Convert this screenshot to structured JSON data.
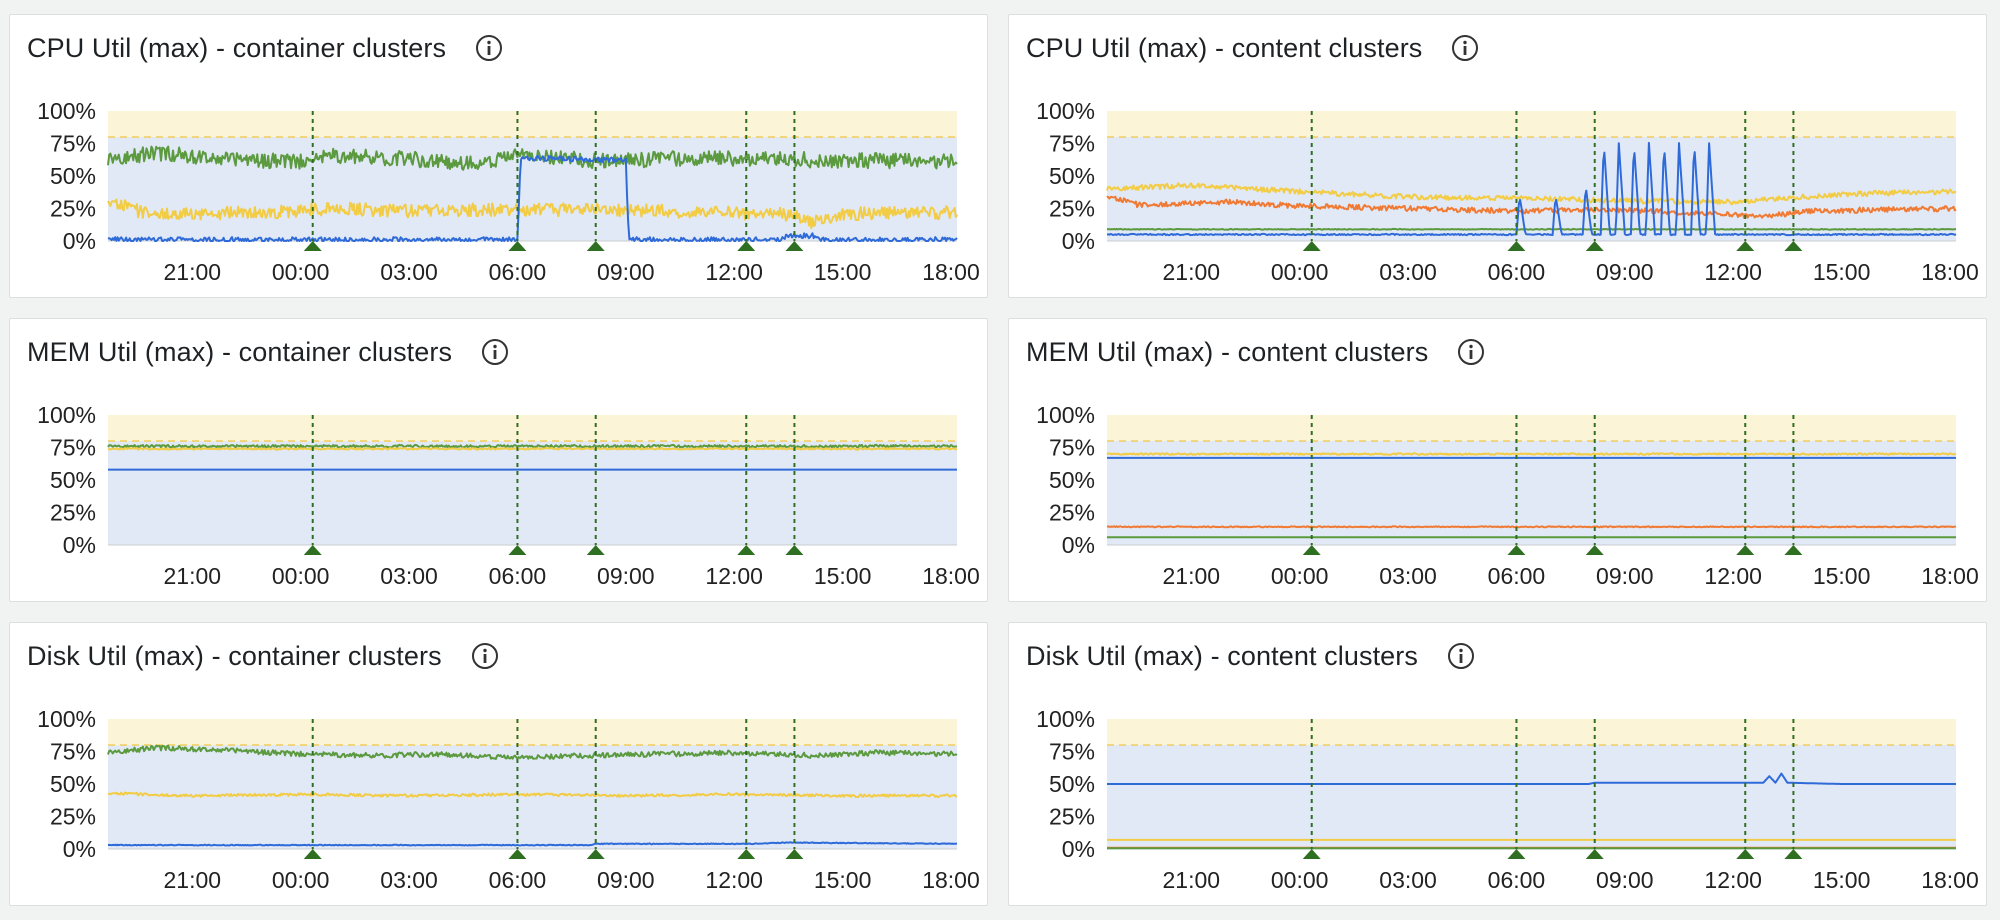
{
  "colors": {
    "band_warn": "#fbf4d6",
    "band_ok": "#e2e9f6",
    "threshold_line": "#f2cd5b",
    "marker": "#2f6f22",
    "blue": "#2f6bd8",
    "green": "#5b9a3f",
    "yellow": "#f2cc44",
    "orange": "#f07a33"
  },
  "icons": {
    "info": "info-circle-icon",
    "annotation": "triangle-marker-icon"
  },
  "chart_data": [
    {
      "id": "cpu-container",
      "title": "CPU Util (max) - container clusters",
      "type": "line",
      "y_ticks": [
        "100%",
        "75%",
        "50%",
        "25%",
        "0%"
      ],
      "x_ticks": [
        "21:00",
        "00:00",
        "03:00",
        "06:00",
        "09:00",
        "12:00",
        "15:00",
        "18:00"
      ],
      "ylim": [
        0,
        100
      ],
      "threshold": 80,
      "xlim": [
        "18:40",
        "18:10"
      ],
      "annotations": [
        "00:20",
        "06:00",
        "08:10",
        "12:20",
        "13:40"
      ],
      "series": [
        {
          "color": "green",
          "points": [
            [
              "18:40",
              62
            ],
            [
              "20:00",
              68
            ],
            [
              "22:00",
              63
            ],
            [
              "00:00",
              61
            ],
            [
              "01:00",
              66
            ],
            [
              "03:00",
              63
            ],
            [
              "05:00",
              60
            ],
            [
              "06:00",
              66
            ],
            [
              "08:00",
              62
            ],
            [
              "09:00",
              62
            ],
            [
              "11:00",
              64
            ],
            [
              "13:00",
              63
            ],
            [
              "15:00",
              62
            ],
            [
              "18:10",
              61
            ]
          ],
          "noise": 6
        },
        {
          "color": "yellow",
          "points": [
            [
              "18:40",
              32
            ],
            [
              "19:30",
              23
            ],
            [
              "21:00",
              21
            ],
            [
              "23:00",
              22
            ],
            [
              "01:00",
              25
            ],
            [
              "03:00",
              23
            ],
            [
              "05:00",
              24
            ],
            [
              "06:00",
              24
            ],
            [
              "09:00",
              24
            ],
            [
              "11:00",
              22
            ],
            [
              "13:00",
              21
            ],
            [
              "13:40",
              20
            ],
            [
              "14:10",
              14
            ],
            [
              "15:00",
              21
            ],
            [
              "18:10",
              22
            ]
          ],
          "noise": 5
        },
        {
          "color": "blue",
          "points": [
            [
              "18:40",
              1
            ],
            [
              "06:00",
              1
            ],
            [
              "06:05",
              64
            ],
            [
              "09:00",
              62
            ],
            [
              "09:05",
              1
            ],
            [
              "13:20",
              1
            ],
            [
              "13:25",
              4
            ],
            [
              "14:20",
              4
            ],
            [
              "14:25",
              1
            ],
            [
              "18:10",
              1
            ]
          ],
          "noise": 2
        }
      ]
    },
    {
      "id": "cpu-content",
      "title": "CPU Util (max) - content clusters",
      "type": "line",
      "y_ticks": [
        "100%",
        "75%",
        "50%",
        "25%",
        "0%"
      ],
      "x_ticks": [
        "21:00",
        "00:00",
        "03:00",
        "06:00",
        "09:00",
        "12:00",
        "15:00",
        "18:00"
      ],
      "ylim": [
        0,
        100
      ],
      "threshold": 80,
      "xlim": [
        "18:40",
        "18:10"
      ],
      "annotations": [
        "00:20",
        "06:00",
        "08:10",
        "12:20",
        "13:40"
      ],
      "series": [
        {
          "color": "yellow",
          "points": [
            [
              "18:40",
              40
            ],
            [
              "21:00",
              43
            ],
            [
              "00:00",
              38
            ],
            [
              "03:00",
              34
            ],
            [
              "06:00",
              33
            ],
            [
              "09:00",
              31
            ],
            [
              "12:00",
              30
            ],
            [
              "13:30",
              33
            ],
            [
              "15:00",
              36
            ],
            [
              "18:10",
              38
            ]
          ],
          "noise": 2
        },
        {
          "color": "orange",
          "points": [
            [
              "18:40",
              35
            ],
            [
              "19:30",
              28
            ],
            [
              "22:00",
              30
            ],
            [
              "00:00",
              27
            ],
            [
              "03:00",
              25
            ],
            [
              "06:00",
              23
            ],
            [
              "09:00",
              24
            ],
            [
              "12:00",
              20
            ],
            [
              "13:00",
              19
            ],
            [
              "14:00",
              23
            ],
            [
              "18:10",
              25
            ]
          ],
          "noise": 2
        },
        {
          "color": "green",
          "points": [
            [
              "18:40",
              9
            ],
            [
              "18:10",
              9
            ]
          ],
          "noise": 0.3
        },
        {
          "color": "blue",
          "points": [
            [
              "18:40",
              5
            ],
            [
              "06:00",
              5
            ],
            [
              "06:05",
              35
            ],
            [
              "06:15",
              5
            ],
            [
              "07:00",
              5
            ],
            [
              "07:05",
              35
            ],
            [
              "07:15",
              5
            ],
            [
              "07:50",
              5
            ],
            [
              "07:55",
              42
            ],
            [
              "08:05",
              5
            ],
            [
              "08:20",
              5
            ],
            [
              "08:25",
              75
            ],
            [
              "08:35",
              5
            ],
            [
              "08:45",
              5
            ],
            [
              "08:50",
              75
            ],
            [
              "09:00",
              5
            ],
            [
              "09:10",
              5
            ],
            [
              "09:15",
              75
            ],
            [
              "09:25",
              5
            ],
            [
              "09:35",
              5
            ],
            [
              "09:40",
              75
            ],
            [
              "09:50",
              5
            ],
            [
              "10:00",
              5
            ],
            [
              "10:05",
              75
            ],
            [
              "10:15",
              5
            ],
            [
              "10:25",
              5
            ],
            [
              "10:30",
              75
            ],
            [
              "10:40",
              5
            ],
            [
              "10:50",
              5
            ],
            [
              "10:55",
              75
            ],
            [
              "11:05",
              5
            ],
            [
              "11:15",
              5
            ],
            [
              "11:20",
              75
            ],
            [
              "11:30",
              5
            ],
            [
              "18:10",
              5
            ]
          ],
          "noise": 0.5
        }
      ]
    },
    {
      "id": "mem-container",
      "title": "MEM Util (max) - container clusters",
      "type": "line",
      "y_ticks": [
        "100%",
        "75%",
        "50%",
        "25%",
        "0%"
      ],
      "x_ticks": [
        "21:00",
        "00:00",
        "03:00",
        "06:00",
        "09:00",
        "12:00",
        "15:00",
        "18:00"
      ],
      "ylim": [
        0,
        100
      ],
      "threshold": 80,
      "xlim": [
        "18:40",
        "18:10"
      ],
      "annotations": [
        "00:20",
        "06:00",
        "08:10",
        "12:20",
        "13:40"
      ],
      "series": [
        {
          "color": "green",
          "points": [
            [
              "18:40",
              76
            ],
            [
              "18:10",
              76
            ]
          ],
          "noise": 1
        },
        {
          "color": "yellow",
          "points": [
            [
              "18:40",
              74
            ],
            [
              "18:10",
              74
            ]
          ],
          "noise": 0.6
        },
        {
          "color": "blue",
          "points": [
            [
              "18:40",
              58
            ],
            [
              "18:10",
              58
            ]
          ],
          "noise": 0
        }
      ]
    },
    {
      "id": "mem-content",
      "title": "MEM Util (max) - content clusters",
      "type": "line",
      "y_ticks": [
        "100%",
        "75%",
        "50%",
        "25%",
        "0%"
      ],
      "x_ticks": [
        "21:00",
        "00:00",
        "03:00",
        "06:00",
        "09:00",
        "12:00",
        "15:00",
        "18:00"
      ],
      "ylim": [
        0,
        100
      ],
      "threshold": 80,
      "xlim": [
        "18:40",
        "18:10"
      ],
      "annotations": [
        "00:20",
        "06:00",
        "08:10",
        "12:20",
        "13:40"
      ],
      "series": [
        {
          "color": "yellow",
          "points": [
            [
              "18:40",
              70
            ],
            [
              "18:10",
              70
            ]
          ],
          "noise": 0.6
        },
        {
          "color": "blue",
          "points": [
            [
              "18:40",
              67
            ],
            [
              "18:10",
              67
            ]
          ],
          "noise": 0
        },
        {
          "color": "orange",
          "points": [
            [
              "18:40",
              14
            ],
            [
              "18:10",
              14
            ]
          ],
          "noise": 0.4
        },
        {
          "color": "green",
          "points": [
            [
              "18:40",
              6
            ],
            [
              "18:10",
              6
            ]
          ],
          "noise": 0
        }
      ]
    },
    {
      "id": "disk-container",
      "title": "Disk Util (max) - container clusters",
      "type": "line",
      "y_ticks": [
        "100%",
        "75%",
        "50%",
        "25%",
        "0%"
      ],
      "x_ticks": [
        "21:00",
        "00:00",
        "03:00",
        "06:00",
        "09:00",
        "12:00",
        "15:00",
        "18:00"
      ],
      "ylim": [
        0,
        100
      ],
      "threshold": 80,
      "xlim": [
        "18:40",
        "18:10"
      ],
      "annotations": [
        "00:20",
        "06:00",
        "08:10",
        "12:20",
        "13:40"
      ],
      "series": [
        {
          "color": "green",
          "points": [
            [
              "18:40",
              74
            ],
            [
              "20:00",
              78
            ],
            [
              "22:00",
              76
            ],
            [
              "00:00",
              73
            ],
            [
              "02:00",
              72
            ],
            [
              "04:00",
              73
            ],
            [
              "06:00",
              70
            ],
            [
              "08:00",
              72
            ],
            [
              "10:00",
              73
            ],
            [
              "12:00",
              74
            ],
            [
              "14:00",
              72
            ],
            [
              "16:00",
              74
            ],
            [
              "18:10",
              73
            ]
          ],
          "noise": 2
        },
        {
          "color": "yellow",
          "points": [
            [
              "18:40",
              43
            ],
            [
              "21:00",
              41
            ],
            [
              "00:00",
              42
            ],
            [
              "03:00",
              41
            ],
            [
              "06:00",
              42
            ],
            [
              "09:00",
              41
            ],
            [
              "12:00",
              42
            ],
            [
              "15:00",
              41
            ],
            [
              "18:10",
              41
            ]
          ],
          "noise": 1
        },
        {
          "color": "blue",
          "points": [
            [
              "18:40",
              3
            ],
            [
              "08:00",
              3
            ],
            [
              "08:10",
              4
            ],
            [
              "12:30",
              4
            ],
            [
              "13:30",
              5
            ],
            [
              "18:10",
              4
            ]
          ],
          "noise": 0.3
        }
      ]
    },
    {
      "id": "disk-content",
      "title": "Disk Util (max) - content clusters",
      "type": "line",
      "y_ticks": [
        "100%",
        "75%",
        "50%",
        "25%",
        "0%"
      ],
      "x_ticks": [
        "21:00",
        "00:00",
        "03:00",
        "06:00",
        "09:00",
        "12:00",
        "15:00",
        "18:00"
      ],
      "ylim": [
        0,
        100
      ],
      "threshold": 80,
      "xlim": [
        "18:40",
        "18:10"
      ],
      "annotations": [
        "00:20",
        "06:00",
        "08:10",
        "12:20",
        "13:40"
      ],
      "series": [
        {
          "color": "blue",
          "points": [
            [
              "18:40",
              50
            ],
            [
              "08:00",
              50
            ],
            [
              "08:10",
              51
            ],
            [
              "12:50",
              51
            ],
            [
              "13:00",
              56
            ],
            [
              "13:10",
              51
            ],
            [
              "13:20",
              58
            ],
            [
              "13:30",
              51
            ],
            [
              "15:00",
              50
            ],
            [
              "18:10",
              50
            ]
          ],
          "noise": 0
        },
        {
          "color": "yellow",
          "points": [
            [
              "18:40",
              7
            ],
            [
              "18:10",
              7
            ]
          ],
          "noise": 0
        },
        {
          "color": "orange",
          "points": [
            [
              "18:40",
              1
            ],
            [
              "18:10",
              1
            ]
          ],
          "noise": 0
        },
        {
          "color": "green",
          "points": [
            [
              "18:40",
              0.5
            ],
            [
              "18:10",
              0.5
            ]
          ],
          "noise": 0
        }
      ]
    }
  ]
}
